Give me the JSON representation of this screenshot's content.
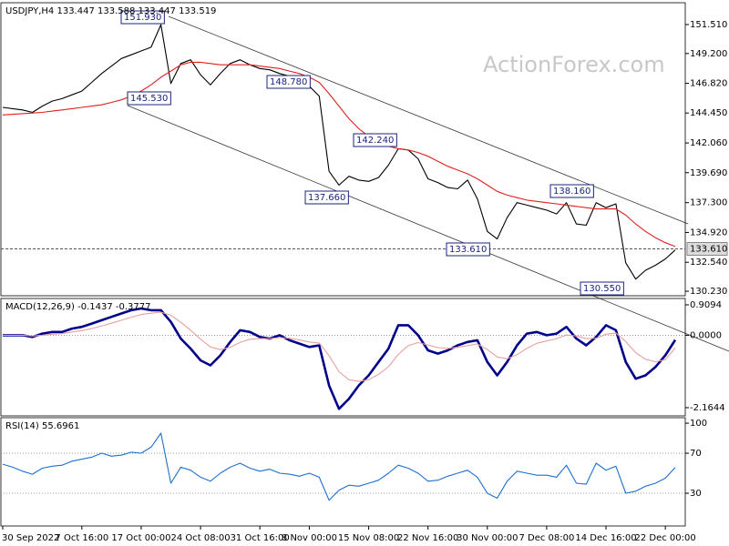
{
  "chart_data": [
    {
      "type": "line",
      "title": "USDJPY,H4  133.447 133.588 133.447 133.519",
      "watermark": "ActionForex.com",
      "ylim": [
        129.87,
        153.25
      ],
      "yticks": [
        {
          "value": 151.51,
          "label": "151.510"
        },
        {
          "value": 149.2,
          "label": "149.200"
        },
        {
          "value": 146.82,
          "label": "146.820"
        },
        {
          "value": 144.45,
          "label": "144.450"
        },
        {
          "value": 142.06,
          "label": "142.060"
        },
        {
          "value": 139.69,
          "label": "139.690"
        },
        {
          "value": 137.3,
          "label": "137.300"
        },
        {
          "value": 134.92,
          "label": "134.920"
        },
        {
          "value": 132.54,
          "label": "132.540"
        },
        {
          "value": 130.23,
          "label": "130.230"
        }
      ],
      "last_price": {
        "value": 133.61,
        "label": "133.610"
      },
      "annotations": [
        "151.930",
        "145.530",
        "148.780",
        "142.240",
        "137.660",
        "138.160",
        "133.610",
        "130.550"
      ],
      "series": [
        {
          "color": "#000000",
          "values": [
            144.9,
            144.8,
            144.7,
            144.5,
            145.0,
            145.4,
            145.6,
            145.9,
            146.2,
            146.9,
            147.6,
            148.2,
            148.8,
            149.1,
            149.4,
            149.7,
            151.5,
            146.8,
            148.4,
            148.7,
            147.5,
            146.7,
            147.6,
            148.4,
            148.7,
            148.3,
            148.0,
            147.9,
            147.6,
            147.4,
            147.0,
            146.6,
            145.8,
            139.8,
            138.7,
            139.4,
            139.1,
            139.0,
            139.3,
            140.3,
            141.6,
            141.5,
            140.8,
            139.2,
            138.9,
            138.5,
            138.4,
            139.1,
            137.6,
            135.0,
            134.4,
            136.1,
            137.3,
            137.1,
            136.9,
            136.7,
            136.4,
            137.3,
            135.6,
            135.5,
            137.3,
            136.9,
            137.2,
            132.5,
            131.2,
            131.9,
            132.3,
            132.8,
            133.52
          ]
        },
        {
          "color": "#e02020",
          "values": [
            144.3,
            144.35,
            144.4,
            144.45,
            144.5,
            144.6,
            144.7,
            144.8,
            144.9,
            145.0,
            145.1,
            145.3,
            145.5,
            145.8,
            146.2,
            146.7,
            147.3,
            147.8,
            148.3,
            148.5,
            148.5,
            148.4,
            148.3,
            148.3,
            148.3,
            148.3,
            148.2,
            148.1,
            148.0,
            147.8,
            147.6,
            147.3,
            146.9,
            146.0,
            145.0,
            144.0,
            143.2,
            142.6,
            142.1,
            141.8,
            141.6,
            141.5,
            141.3,
            141.0,
            140.6,
            140.2,
            139.9,
            139.6,
            139.2,
            138.7,
            138.2,
            137.9,
            137.7,
            137.5,
            137.4,
            137.3,
            137.2,
            137.1,
            137.0,
            136.9,
            136.8,
            136.8,
            136.8,
            136.3,
            135.6,
            135.0,
            134.5,
            134.1,
            133.8
          ]
        }
      ]
    },
    {
      "type": "line",
      "title": "MACD(12,26,9) -0.1437 -0.3777",
      "ylim": [
        -2.41,
        1.1
      ],
      "yticks": [
        0.9094,
        {
          "value": 0,
          "label": "0.0000"
        },
        -2.1644
      ],
      "dotted_lines": [
        0
      ],
      "series": [
        {
          "color": "#00008b",
          "values": [
            0.0,
            0.0,
            0.0,
            -0.05,
            0.05,
            0.1,
            0.1,
            0.2,
            0.25,
            0.35,
            0.45,
            0.55,
            0.65,
            0.75,
            0.8,
            0.75,
            0.75,
            0.4,
            -0.1,
            -0.4,
            -0.75,
            -0.9,
            -0.6,
            -0.2,
            0.15,
            0.1,
            -0.05,
            -0.1,
            0.0,
            -0.15,
            -0.25,
            -0.35,
            -0.3,
            -1.5,
            -2.2,
            -1.9,
            -1.5,
            -1.2,
            -0.8,
            -0.4,
            0.3,
            0.3,
            0.0,
            -0.45,
            -0.55,
            -0.45,
            -0.3,
            -0.2,
            -0.15,
            -0.8,
            -1.2,
            -0.8,
            -0.3,
            0.05,
            0.1,
            0.0,
            0.05,
            0.25,
            -0.1,
            -0.3,
            -0.05,
            0.3,
            0.15,
            -0.8,
            -1.3,
            -1.2,
            -0.95,
            -0.6,
            -0.14
          ]
        },
        {
          "color": "#e8a0a0",
          "values": [
            0.0,
            0.0,
            0.0,
            -0.02,
            0.0,
            0.03,
            0.05,
            0.1,
            0.14,
            0.2,
            0.28,
            0.36,
            0.45,
            0.54,
            0.62,
            0.66,
            0.69,
            0.6,
            0.39,
            0.15,
            -0.12,
            -0.35,
            -0.43,
            -0.36,
            -0.21,
            -0.12,
            -0.1,
            -0.1,
            -0.07,
            -0.09,
            -0.14,
            -0.2,
            -0.23,
            -0.61,
            -1.09,
            -1.33,
            -1.38,
            -1.33,
            -1.17,
            -0.94,
            -0.57,
            -0.31,
            -0.22,
            -0.29,
            -0.37,
            -0.39,
            -0.36,
            -0.31,
            -0.26,
            -0.42,
            -0.65,
            -0.7,
            -0.58,
            -0.39,
            -0.24,
            -0.17,
            -0.1,
            0.01,
            -0.02,
            -0.1,
            -0.09,
            0.03,
            0.07,
            -0.19,
            -0.52,
            -0.72,
            -0.79,
            -0.73,
            -0.38
          ]
        }
      ]
    },
    {
      "type": "line",
      "title": "RSI(14) 55.6961",
      "ylim": [
        -2.7,
        105.5
      ],
      "yticks": [
        100,
        70,
        30
      ],
      "dotted_lines": [
        70,
        30
      ],
      "categories": [
        "30 Sep 2022",
        null,
        null,
        null,
        null,
        null,
        null,
        null,
        "7 Oct 16:00",
        null,
        null,
        null,
        null,
        null,
        "17 Oct 00:00",
        null,
        null,
        null,
        null,
        null,
        "24 Oct 08:00",
        null,
        null,
        null,
        null,
        null,
        "31 Oct 16:00",
        null,
        null,
        null,
        null,
        "8 Nov 00:00",
        null,
        null,
        null,
        null,
        null,
        "15 Nov 08:00",
        null,
        null,
        null,
        null,
        null,
        "22 Nov 16:00",
        null,
        null,
        null,
        null,
        null,
        "30 Nov 00:00",
        null,
        null,
        null,
        null,
        null,
        "7 Dec 08:00",
        null,
        null,
        null,
        null,
        null,
        "14 Dec 16:00",
        null,
        null,
        null,
        null,
        null,
        "22 Dec 00:00",
        null
      ],
      "series": [
        {
          "color": "#1e6fd0",
          "values": [
            59,
            56,
            52,
            49,
            55,
            57,
            58,
            62,
            64,
            66,
            70,
            67,
            68,
            71,
            70,
            76,
            90,
            40,
            56,
            53,
            46,
            42,
            50,
            56,
            60,
            55,
            52,
            54,
            50,
            49,
            47,
            50,
            46,
            23,
            33,
            38,
            37,
            40,
            43,
            50,
            58,
            55,
            50,
            42,
            43,
            47,
            50,
            53,
            46,
            30,
            25,
            42,
            52,
            50,
            48,
            48,
            46,
            58,
            40,
            39,
            60,
            53,
            57,
            30,
            32,
            37,
            40,
            45,
            55.7
          ]
        }
      ]
    }
  ]
}
